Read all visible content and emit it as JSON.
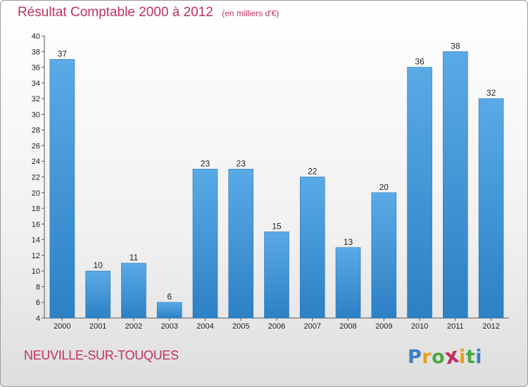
{
  "title": "Résultat Comptable 2000 à 2012",
  "unit_note": "(en milliers d'€)",
  "commune": "NEUVILLE-SUR-TOUQUES",
  "logo": {
    "text": "Proxiti",
    "letters": [
      "P",
      "r",
      "o",
      "x",
      "i",
      "t",
      "i"
    ],
    "colors": [
      "#3d7fc4",
      "#e8a11d",
      "#4aa843",
      "#c0325f",
      "#e8a11d",
      "#4aa843",
      "#3d7fc4"
    ]
  },
  "colors": {
    "bar_light": "#5aaae6",
    "bar_dark": "#2c80c4",
    "title": "#c0325f"
  },
  "chart_data": {
    "type": "bar",
    "title": "Résultat Comptable 2000 à 2012",
    "ylabel": "en milliers d'€",
    "xlabel": "",
    "categories": [
      "2000",
      "2001",
      "2002",
      "2003",
      "2004",
      "2005",
      "2006",
      "2007",
      "2008",
      "2009",
      "2010",
      "2011",
      "2012"
    ],
    "values": [
      37,
      10,
      11,
      6,
      23,
      23,
      15,
      22,
      13,
      20,
      36,
      38,
      32
    ],
    "ylim": [
      4,
      40
    ],
    "yticks": [
      4,
      6,
      8,
      10,
      12,
      14,
      16,
      18,
      20,
      22,
      24,
      26,
      28,
      30,
      32,
      34,
      36,
      38,
      40
    ],
    "grid": false
  }
}
